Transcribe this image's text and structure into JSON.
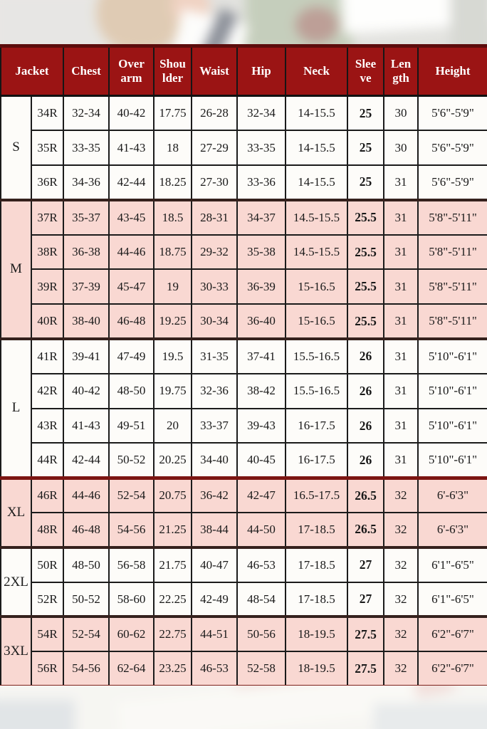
{
  "colors": {
    "header_bg": "#9b1414",
    "header_text": "#ffffff",
    "pink_row": "#f9d8d2",
    "white_row": "#fdfcf9",
    "cell_border": "#1b1b1b",
    "group_separator": "#35211d",
    "group_separator_red": "#7c1512",
    "table_top_border": "#5c0c0c"
  },
  "chart_data": {
    "type": "table",
    "columns": [
      "Jacket",
      "Chest",
      "Over\narm",
      "Shou\nlder",
      "Waist",
      "Hip",
      "Neck",
      "Slee\nve",
      "Len\ngth",
      "Height"
    ],
    "column_keys": [
      "size",
      "chest",
      "overarm",
      "shoulder",
      "waist",
      "hip",
      "neck",
      "sleeve",
      "length",
      "height"
    ],
    "groups": [
      {
        "label": "S",
        "shade": "white",
        "rows": [
          [
            "34R",
            "32-34",
            "40-42",
            "17.75",
            "26-28",
            "32-34",
            "14-15.5",
            "25",
            "30",
            "5'6\"-5'9\""
          ],
          [
            "35R",
            "33-35",
            "41-43",
            "18",
            "27-29",
            "33-35",
            "14-15.5",
            "25",
            "30",
            "5'6\"-5'9\""
          ],
          [
            "36R",
            "34-36",
            "42-44",
            "18.25",
            "27-30",
            "33-36",
            "14-15.5",
            "25",
            "31",
            "5'6\"-5'9\""
          ]
        ]
      },
      {
        "label": "M",
        "shade": "pink",
        "rows": [
          [
            "37R",
            "35-37",
            "43-45",
            "18.5",
            "28-31",
            "34-37",
            "14.5-15.5",
            "25.5",
            "31",
            "5'8\"-5'11\""
          ],
          [
            "38R",
            "36-38",
            "44-46",
            "18.75",
            "29-32",
            "35-38",
            "14.5-15.5",
            "25.5",
            "31",
            "5'8\"-5'11\""
          ],
          [
            "39R",
            "37-39",
            "45-47",
            "19",
            "30-33",
            "36-39",
            "15-16.5",
            "25.5",
            "31",
            "5'8\"-5'11\""
          ],
          [
            "40R",
            "38-40",
            "46-48",
            "19.25",
            "30-34",
            "36-40",
            "15-16.5",
            "25.5",
            "31",
            "5'8\"-5'11\""
          ]
        ]
      },
      {
        "label": "L",
        "shade": "white",
        "rows": [
          [
            "41R",
            "39-41",
            "47-49",
            "19.5",
            "31-35",
            "37-41",
            "15.5-16.5",
            "26",
            "31",
            "5'10\"-6'1\""
          ],
          [
            "42R",
            "40-42",
            "48-50",
            "19.75",
            "32-36",
            "38-42",
            "15.5-16.5",
            "26",
            "31",
            "5'10\"-6'1\""
          ],
          [
            "43R",
            "41-43",
            "49-51",
            "20",
            "33-37",
            "39-43",
            "16-17.5",
            "26",
            "31",
            "5'10\"-6'1\""
          ],
          [
            "44R",
            "42-44",
            "50-52",
            "20.25",
            "34-40",
            "40-45",
            "16-17.5",
            "26",
            "31",
            "5'10\"-6'1\""
          ]
        ]
      },
      {
        "label": "XL",
        "shade": "pink",
        "sep": "red",
        "rows": [
          [
            "46R",
            "44-46",
            "52-54",
            "20.75",
            "36-42",
            "42-47",
            "16.5-17.5",
            "26.5",
            "32",
            "6'-6'3\""
          ],
          [
            "48R",
            "46-48",
            "54-56",
            "21.25",
            "38-44",
            "44-50",
            "17-18.5",
            "26.5",
            "32",
            "6'-6'3\""
          ]
        ]
      },
      {
        "label": "2XL",
        "shade": "white",
        "rows": [
          [
            "50R",
            "48-50",
            "56-58",
            "21.75",
            "40-47",
            "46-53",
            "17-18.5",
            "27",
            "32",
            "6'1\"-6'5\""
          ],
          [
            "52R",
            "50-52",
            "58-60",
            "22.25",
            "42-49",
            "48-54",
            "17-18.5",
            "27",
            "32",
            "6'1\"-6'5\""
          ]
        ]
      },
      {
        "label": "3XL",
        "shade": "pink",
        "rows": [
          [
            "54R",
            "52-54",
            "60-62",
            "22.75",
            "44-51",
            "50-56",
            "18-19.5",
            "27.5",
            "32",
            "6'2\"-6'7\""
          ],
          [
            "56R",
            "54-56",
            "62-64",
            "23.25",
            "46-53",
            "52-58",
            "18-19.5",
            "27.5",
            "32",
            "6'2\"-6'7\""
          ]
        ]
      }
    ]
  }
}
